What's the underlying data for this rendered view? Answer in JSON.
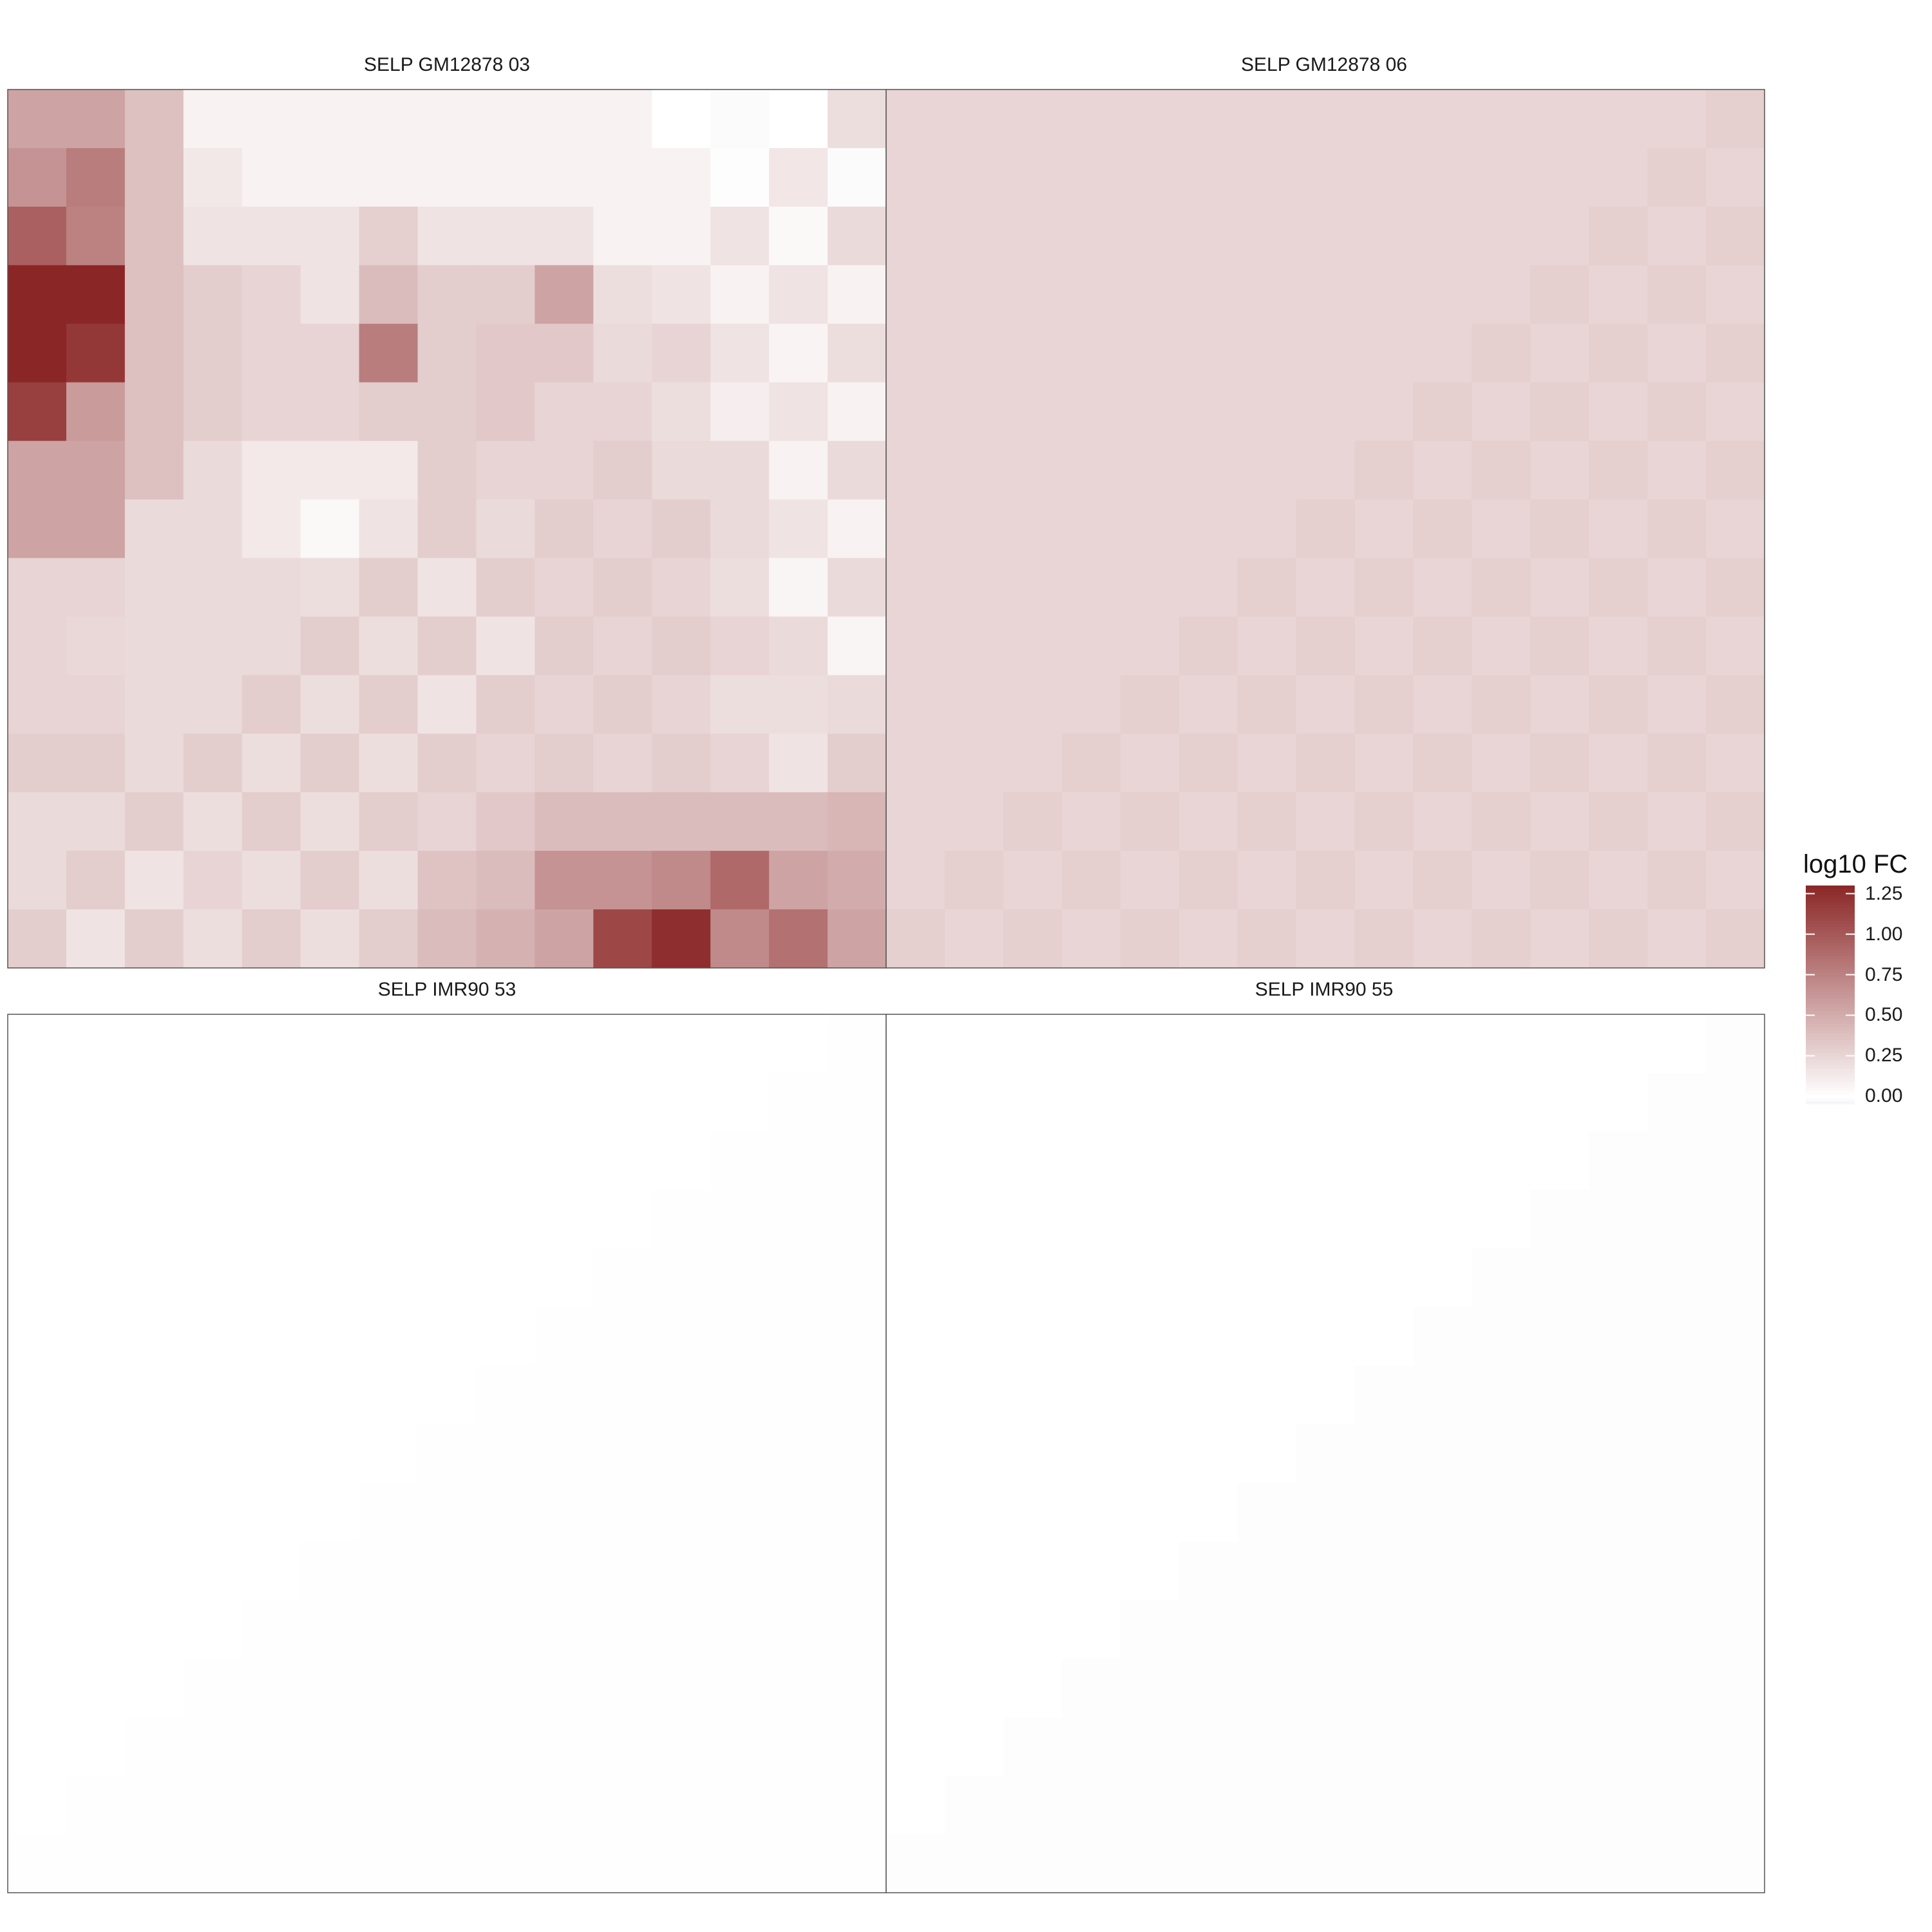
{
  "chart_data": [
    {
      "type": "heatmap",
      "title": "SELP GM12878 03",
      "z": [
        [
          0.55,
          0.55,
          0.38,
          0.08,
          0.08,
          0.08,
          0.08,
          0.08,
          0.08,
          0.08,
          0.08,
          0.0,
          -0.02,
          0.0,
          0.2
        ],
        [
          0.65,
          0.78,
          0.38,
          0.14,
          0.08,
          0.08,
          0.08,
          0.08,
          0.08,
          0.08,
          0.08,
          0.08,
          0.01,
          0.15,
          -0.02
        ],
        [
          0.95,
          0.75,
          0.38,
          0.17,
          0.17,
          0.17,
          0.29,
          0.17,
          0.17,
          0.17,
          0.08,
          0.08,
          0.17,
          0.04,
          0.22
        ],
        [
          1.3,
          1.3,
          0.38,
          0.3,
          0.26,
          0.17,
          0.4,
          0.3,
          0.3,
          0.55,
          0.2,
          0.17,
          0.08,
          0.17,
          0.08
        ],
        [
          1.3,
          1.2,
          0.38,
          0.3,
          0.26,
          0.26,
          0.78,
          0.3,
          0.33,
          0.33,
          0.22,
          0.26,
          0.17,
          0.07,
          0.2
        ],
        [
          1.15,
          0.6,
          0.38,
          0.3,
          0.26,
          0.26,
          0.3,
          0.3,
          0.33,
          0.26,
          0.26,
          0.2,
          0.1,
          0.17,
          0.08
        ],
        [
          0.55,
          0.55,
          0.38,
          0.22,
          0.13,
          0.13,
          0.13,
          0.3,
          0.26,
          0.26,
          0.3,
          0.22,
          0.22,
          0.08,
          0.22
        ],
        [
          0.55,
          0.55,
          0.22,
          0.22,
          0.13,
          0.04,
          0.17,
          0.3,
          0.22,
          0.3,
          0.26,
          0.3,
          0.22,
          0.17,
          0.08
        ],
        [
          0.26,
          0.26,
          0.22,
          0.22,
          0.22,
          0.2,
          0.3,
          0.17,
          0.3,
          0.26,
          0.3,
          0.26,
          0.2,
          0.06,
          0.22
        ],
        [
          0.26,
          0.24,
          0.22,
          0.22,
          0.22,
          0.3,
          0.2,
          0.3,
          0.17,
          0.3,
          0.26,
          0.3,
          0.26,
          0.22,
          0.06
        ],
        [
          0.26,
          0.26,
          0.22,
          0.22,
          0.3,
          0.2,
          0.3,
          0.17,
          0.3,
          0.26,
          0.3,
          0.26,
          0.2,
          0.2,
          0.22
        ],
        [
          0.3,
          0.3,
          0.22,
          0.3,
          0.2,
          0.3,
          0.2,
          0.3,
          0.26,
          0.3,
          0.26,
          0.3,
          0.26,
          0.17,
          0.3
        ],
        [
          0.22,
          0.22,
          0.3,
          0.2,
          0.3,
          0.2,
          0.3,
          0.26,
          0.33,
          0.4,
          0.4,
          0.4,
          0.4,
          0.4,
          0.44
        ],
        [
          0.22,
          0.3,
          0.17,
          0.26,
          0.2,
          0.3,
          0.2,
          0.36,
          0.4,
          0.65,
          0.65,
          0.7,
          0.9,
          0.55,
          0.5
        ],
        [
          0.3,
          0.17,
          0.3,
          0.2,
          0.3,
          0.2,
          0.3,
          0.4,
          0.47,
          0.55,
          1.1,
          1.25,
          0.7,
          0.85,
          0.55
        ]
      ]
    },
    {
      "type": "heatmap",
      "title": "SELP GM12878 06",
      "z": [
        [
          0.25,
          0.25,
          0.25,
          0.25,
          0.25,
          0.25,
          0.25,
          0.25,
          0.25,
          0.25,
          0.25,
          0.25,
          0.25,
          0.25,
          0.29
        ],
        [
          0.25,
          0.25,
          0.25,
          0.25,
          0.25,
          0.25,
          0.25,
          0.25,
          0.25,
          0.25,
          0.25,
          0.25,
          0.25,
          0.29,
          0.25
        ],
        [
          0.25,
          0.25,
          0.25,
          0.25,
          0.25,
          0.25,
          0.25,
          0.25,
          0.25,
          0.25,
          0.25,
          0.25,
          0.29,
          0.25,
          0.29
        ],
        [
          0.25,
          0.25,
          0.25,
          0.25,
          0.25,
          0.25,
          0.25,
          0.25,
          0.25,
          0.25,
          0.25,
          0.29,
          0.25,
          0.29,
          0.25
        ],
        [
          0.25,
          0.25,
          0.25,
          0.25,
          0.25,
          0.25,
          0.25,
          0.25,
          0.25,
          0.25,
          0.29,
          0.25,
          0.29,
          0.25,
          0.29
        ],
        [
          0.25,
          0.25,
          0.25,
          0.25,
          0.25,
          0.25,
          0.25,
          0.25,
          0.25,
          0.29,
          0.25,
          0.29,
          0.25,
          0.29,
          0.25
        ],
        [
          0.25,
          0.25,
          0.25,
          0.25,
          0.25,
          0.25,
          0.25,
          0.25,
          0.29,
          0.25,
          0.29,
          0.25,
          0.29,
          0.25,
          0.29
        ],
        [
          0.25,
          0.25,
          0.25,
          0.25,
          0.25,
          0.25,
          0.25,
          0.29,
          0.25,
          0.29,
          0.25,
          0.29,
          0.25,
          0.29,
          0.25
        ],
        [
          0.25,
          0.25,
          0.25,
          0.25,
          0.25,
          0.25,
          0.29,
          0.25,
          0.29,
          0.25,
          0.29,
          0.25,
          0.29,
          0.25,
          0.29
        ],
        [
          0.25,
          0.25,
          0.25,
          0.25,
          0.25,
          0.29,
          0.25,
          0.29,
          0.25,
          0.29,
          0.25,
          0.29,
          0.25,
          0.29,
          0.25
        ],
        [
          0.25,
          0.25,
          0.25,
          0.25,
          0.29,
          0.25,
          0.29,
          0.25,
          0.29,
          0.25,
          0.29,
          0.25,
          0.29,
          0.25,
          0.29
        ],
        [
          0.25,
          0.25,
          0.25,
          0.29,
          0.25,
          0.29,
          0.25,
          0.29,
          0.25,
          0.29,
          0.25,
          0.29,
          0.25,
          0.29,
          0.25
        ],
        [
          0.25,
          0.25,
          0.29,
          0.25,
          0.29,
          0.25,
          0.29,
          0.25,
          0.29,
          0.25,
          0.29,
          0.25,
          0.29,
          0.25,
          0.29
        ],
        [
          0.25,
          0.29,
          0.25,
          0.29,
          0.25,
          0.29,
          0.25,
          0.29,
          0.25,
          0.29,
          0.25,
          0.29,
          0.25,
          0.29,
          0.25
        ],
        [
          0.29,
          0.25,
          0.29,
          0.25,
          0.29,
          0.25,
          0.29,
          0.25,
          0.29,
          0.25,
          0.29,
          0.25,
          0.29,
          0.25,
          0.29
        ]
      ]
    },
    {
      "type": "heatmap",
      "title": "SELP IMR90 53",
      "z": [
        [
          0.0,
          0.0,
          0.0,
          0.0,
          0.0,
          0.0,
          0.0,
          0.0,
          0.0,
          0.0,
          0.0,
          0.0,
          0.0,
          0.0,
          0.005
        ],
        [
          0.0,
          0.0,
          0.0,
          0.0,
          0.0,
          0.0,
          0.0,
          0.0,
          0.0,
          0.0,
          0.0,
          0.0,
          0.0,
          0.005,
          0.005
        ],
        [
          0.0,
          0.0,
          0.0,
          0.0,
          0.0,
          0.0,
          0.0,
          0.0,
          0.0,
          0.0,
          0.0,
          0.0,
          0.005,
          0.005,
          0.005
        ],
        [
          0.0,
          0.0,
          0.0,
          0.0,
          0.0,
          0.0,
          0.0,
          0.0,
          0.0,
          0.0,
          0.0,
          0.005,
          0.005,
          0.005,
          0.005
        ],
        [
          0.0,
          0.0,
          0.0,
          0.0,
          0.0,
          0.0,
          0.0,
          0.0,
          0.0,
          0.0,
          0.005,
          0.005,
          0.005,
          0.005,
          0.005
        ],
        [
          0.0,
          0.0,
          0.0,
          0.0,
          0.0,
          0.0,
          0.0,
          0.0,
          0.0,
          0.005,
          0.005,
          0.005,
          0.005,
          0.005,
          0.005
        ],
        [
          0.0,
          0.0,
          0.0,
          0.0,
          0.0,
          0.0,
          0.0,
          0.0,
          0.005,
          0.005,
          0.005,
          0.005,
          0.005,
          0.005,
          0.005
        ],
        [
          0.0,
          0.0,
          0.0,
          0.0,
          0.0,
          0.0,
          0.0,
          0.005,
          0.005,
          0.005,
          0.005,
          0.005,
          0.005,
          0.005,
          0.005
        ],
        [
          0.0,
          0.0,
          0.0,
          0.0,
          0.0,
          0.0,
          0.005,
          0.005,
          0.005,
          0.005,
          0.005,
          0.005,
          0.005,
          0.005,
          0.005
        ],
        [
          0.0,
          0.0,
          0.0,
          0.0,
          0.0,
          0.005,
          0.005,
          0.005,
          0.005,
          0.005,
          0.005,
          0.005,
          0.005,
          0.005,
          0.005
        ],
        [
          0.0,
          0.0,
          0.0,
          0.0,
          0.005,
          0.005,
          0.005,
          0.005,
          0.005,
          0.005,
          0.005,
          0.005,
          0.005,
          0.005,
          0.005
        ],
        [
          0.0,
          0.0,
          0.0,
          0.005,
          0.005,
          0.005,
          0.005,
          0.005,
          0.005,
          0.005,
          0.005,
          0.005,
          0.005,
          0.005,
          0.005
        ],
        [
          0.0,
          0.0,
          0.005,
          0.005,
          0.005,
          0.005,
          0.005,
          0.005,
          0.005,
          0.005,
          0.005,
          0.005,
          0.005,
          0.005,
          0.005
        ],
        [
          0.0,
          0.005,
          0.005,
          0.005,
          0.005,
          0.005,
          0.005,
          0.005,
          0.005,
          0.005,
          0.005,
          0.005,
          0.005,
          0.005,
          0.005
        ],
        [
          0.005,
          0.005,
          0.005,
          0.005,
          0.005,
          0.005,
          0.005,
          0.005,
          0.005,
          0.005,
          0.005,
          0.005,
          0.005,
          0.005,
          0.005
        ]
      ]
    },
    {
      "type": "heatmap",
      "title": "SELP IMR90 55",
      "z": [
        [
          0.0,
          0.0,
          0.0,
          0.0,
          0.0,
          0.0,
          0.0,
          0.0,
          0.0,
          0.0,
          0.0,
          0.0,
          0.0,
          0.0,
          -0.01
        ],
        [
          0.0,
          0.0,
          0.0,
          0.0,
          0.0,
          0.0,
          0.0,
          0.0,
          0.0,
          0.0,
          0.0,
          0.0,
          0.0,
          -0.01,
          -0.01
        ],
        [
          0.0,
          0.0,
          0.0,
          0.0,
          0.0,
          0.0,
          0.0,
          0.0,
          0.0,
          0.0,
          0.0,
          0.0,
          -0.01,
          -0.01,
          -0.01
        ],
        [
          0.0,
          0.0,
          0.0,
          0.0,
          0.0,
          0.0,
          0.0,
          0.0,
          0.0,
          0.0,
          0.0,
          -0.01,
          -0.01,
          -0.01,
          -0.01
        ],
        [
          0.0,
          0.0,
          0.0,
          0.0,
          0.0,
          0.0,
          0.0,
          0.0,
          0.0,
          0.0,
          -0.01,
          -0.01,
          -0.01,
          -0.01,
          -0.01
        ],
        [
          0.0,
          0.0,
          0.0,
          0.0,
          0.0,
          0.0,
          0.0,
          0.0,
          0.0,
          -0.01,
          -0.01,
          -0.01,
          -0.01,
          -0.01,
          -0.01
        ],
        [
          0.0,
          0.0,
          0.0,
          0.0,
          0.0,
          0.0,
          0.0,
          0.0,
          -0.01,
          -0.01,
          -0.01,
          -0.01,
          -0.01,
          -0.01,
          -0.01
        ],
        [
          0.0,
          0.0,
          0.0,
          0.0,
          0.0,
          0.0,
          0.0,
          -0.01,
          -0.01,
          -0.01,
          -0.01,
          -0.01,
          -0.01,
          -0.01,
          -0.01
        ],
        [
          0.0,
          0.0,
          0.0,
          0.0,
          0.0,
          0.0,
          -0.01,
          -0.01,
          -0.01,
          -0.01,
          -0.01,
          -0.01,
          -0.01,
          -0.01,
          -0.01
        ],
        [
          0.0,
          0.0,
          0.0,
          0.0,
          0.0,
          -0.01,
          -0.01,
          -0.01,
          -0.01,
          -0.01,
          -0.01,
          -0.01,
          -0.01,
          -0.01,
          -0.01
        ],
        [
          0.0,
          0.0,
          0.0,
          0.0,
          -0.01,
          -0.01,
          -0.01,
          -0.01,
          -0.01,
          -0.01,
          -0.01,
          -0.01,
          -0.01,
          -0.01,
          -0.01
        ],
        [
          0.0,
          0.0,
          0.0,
          -0.01,
          -0.01,
          -0.01,
          -0.01,
          -0.01,
          -0.01,
          -0.01,
          -0.01,
          -0.01,
          -0.01,
          -0.01,
          -0.01
        ],
        [
          0.0,
          0.0,
          -0.01,
          -0.01,
          -0.01,
          -0.01,
          -0.01,
          -0.01,
          -0.01,
          -0.01,
          -0.01,
          -0.01,
          -0.01,
          -0.01,
          -0.01
        ],
        [
          0.0,
          -0.01,
          -0.01,
          -0.01,
          -0.01,
          -0.01,
          -0.01,
          -0.01,
          -0.01,
          -0.01,
          -0.01,
          -0.01,
          -0.01,
          -0.01,
          -0.01
        ],
        [
          -0.01,
          -0.01,
          -0.01,
          -0.01,
          -0.01,
          -0.01,
          -0.01,
          -0.01,
          -0.01,
          -0.01,
          -0.01,
          -0.01,
          -0.01,
          -0.01,
          -0.01
        ]
      ]
    }
  ],
  "legend": {
    "title": "log10 FC",
    "ticks": [
      1.25,
      1.0,
      0.75,
      0.5,
      0.25,
      0.0
    ],
    "tick_labels": [
      "1.25",
      "1.00",
      "0.75",
      "0.50",
      "0.25",
      "0.00"
    ],
    "range": [
      -0.05,
      1.3
    ],
    "colors": {
      "high": "#8b2626",
      "mid": "#ffffff",
      "low": "#f4f4f8"
    }
  }
}
